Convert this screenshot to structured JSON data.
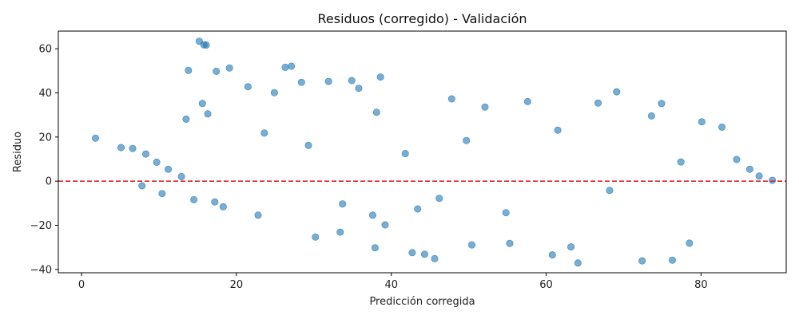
{
  "chart_data": {
    "type": "scatter",
    "title": "Residuos (corregido) - Validación",
    "xlabel": "Predicción corregida",
    "ylabel": "Residuo",
    "xlim": [
      -3,
      91
    ],
    "ylim": [
      -41.5,
      68
    ],
    "xticks": [
      0,
      20,
      40,
      60,
      80
    ],
    "yticks": [
      -40,
      -20,
      0,
      20,
      40,
      60
    ],
    "ytick_labels": [
      "−40",
      "−20",
      "0",
      "20",
      "40",
      "60"
    ],
    "grid": false,
    "marker_color": "#1f77b4",
    "marker_opacity": 0.6,
    "reference_line": {
      "y": 0,
      "color": "#d62728",
      "style": "dashed"
    },
    "series": [
      {
        "x": [
          1.8,
          5.1,
          6.6,
          8.3,
          9.7,
          11.2,
          12.9,
          13.8,
          14.5,
          15.2,
          15.6,
          16.1,
          17.4,
          18.3,
          19.1,
          21.5,
          22.8,
          24.9,
          26.3,
          27.1,
          28.4,
          30.2,
          31.9,
          33.4,
          35.8,
          37.9,
          38.6,
          39.2,
          42.7,
          44.3,
          45.6,
          47.8,
          50.4,
          52.1,
          55.3,
          57.6,
          60.8,
          63.2,
          66.7,
          69.1,
          72.4,
          74.9,
          76.3,
          78.5,
          80.1,
          82.7,
          84.6,
          86.3,
          87.5,
          89.2,
          7.8,
          10.4,
          17.2,
          23.6,
          29.3,
          33.7,
          41.8,
          46.2,
          49.7,
          54.8,
          61.5,
          64.1,
          68.2,
          73.6,
          77.4,
          15.8,
          16.3,
          13.5,
          38.1,
          37.6,
          43.4,
          34.9
        ],
        "y": [
          19.5,
          15.2,
          14.8,
          12.3,
          8.6,
          5.4,
          2.1,
          50.2,
          -8.4,
          63.4,
          35.2,
          61.7,
          49.8,
          -11.6,
          51.3,
          42.8,
          -15.4,
          40.1,
          51.6,
          52.1,
          44.8,
          -25.3,
          45.2,
          -23.1,
          42.1,
          -30.2,
          47.2,
          -19.8,
          -32.4,
          -33.1,
          -35.1,
          37.3,
          -28.9,
          33.6,
          -28.2,
          36.1,
          -33.4,
          -29.8,
          35.4,
          40.5,
          -36.1,
          35.2,
          -35.8,
          -28.1,
          26.9,
          24.5,
          9.8,
          5.4,
          2.3,
          0.4,
          -2.1,
          -5.6,
          -9.4,
          21.8,
          16.2,
          -10.3,
          12.5,
          -7.8,
          18.4,
          -14.3,
          23.1,
          -37.1,
          -4.2,
          29.6,
          8.7,
          61.8,
          30.5,
          28.1,
          31.2,
          -15.4,
          -12.6,
          45.6
        ]
      }
    ]
  }
}
